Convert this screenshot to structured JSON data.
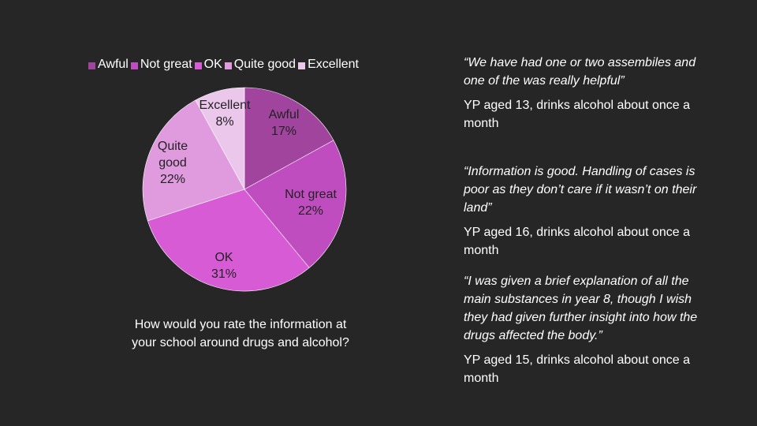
{
  "chart_data": {
    "type": "pie",
    "title": "How would you rate the information at your school around drugs and alcohol?",
    "slices": [
      {
        "name": "Awful",
        "value": 17,
        "label_lines": [
          "Awful",
          "17%"
        ],
        "color": "#a0449e"
      },
      {
        "name": "Not great",
        "value": 22,
        "label_lines": [
          "Not great",
          "22%"
        ],
        "color": "#c04dc0"
      },
      {
        "name": "OK",
        "value": 31,
        "label_lines": [
          "OK",
          "31%"
        ],
        "color": "#d85bd6"
      },
      {
        "name": "Quite good",
        "value": 22,
        "label_lines": [
          "Quite",
          "good",
          "22%"
        ],
        "color": "#e09ade"
      },
      {
        "name": "Excellent",
        "value": 8,
        "label_lines": [
          "Excellent",
          "8%"
        ],
        "color": "#ecc7ec"
      }
    ],
    "legend_position": "top"
  },
  "caption": {
    "line1": "How would you rate the information at",
    "line2": "your school around drugs and alcohol?"
  },
  "quotes": [
    {
      "text_lines": [
        "“We have had one or two assembiles and",
        "one of the was really helpful”"
      ],
      "attribution_lines": [
        "YP aged 13, drinks alcohol about once a",
        "month"
      ]
    },
    {
      "text_lines": [
        "“Information is good. Handling of cases is",
        "poor as they don’t care if it wasn’t on their",
        "land”"
      ],
      "attribution_lines": [
        "YP aged 16, drinks alcohol about once a",
        "month"
      ]
    },
    {
      "text_lines": [
        "“I was given a brief explanation of all the",
        "main substances in year 8, though I wish",
        "they had given further insight into how the",
        "drugs affected the body.”"
      ],
      "attribution_lines": [
        "YP aged 15, drinks alcohol about once a",
        "month"
      ]
    }
  ]
}
